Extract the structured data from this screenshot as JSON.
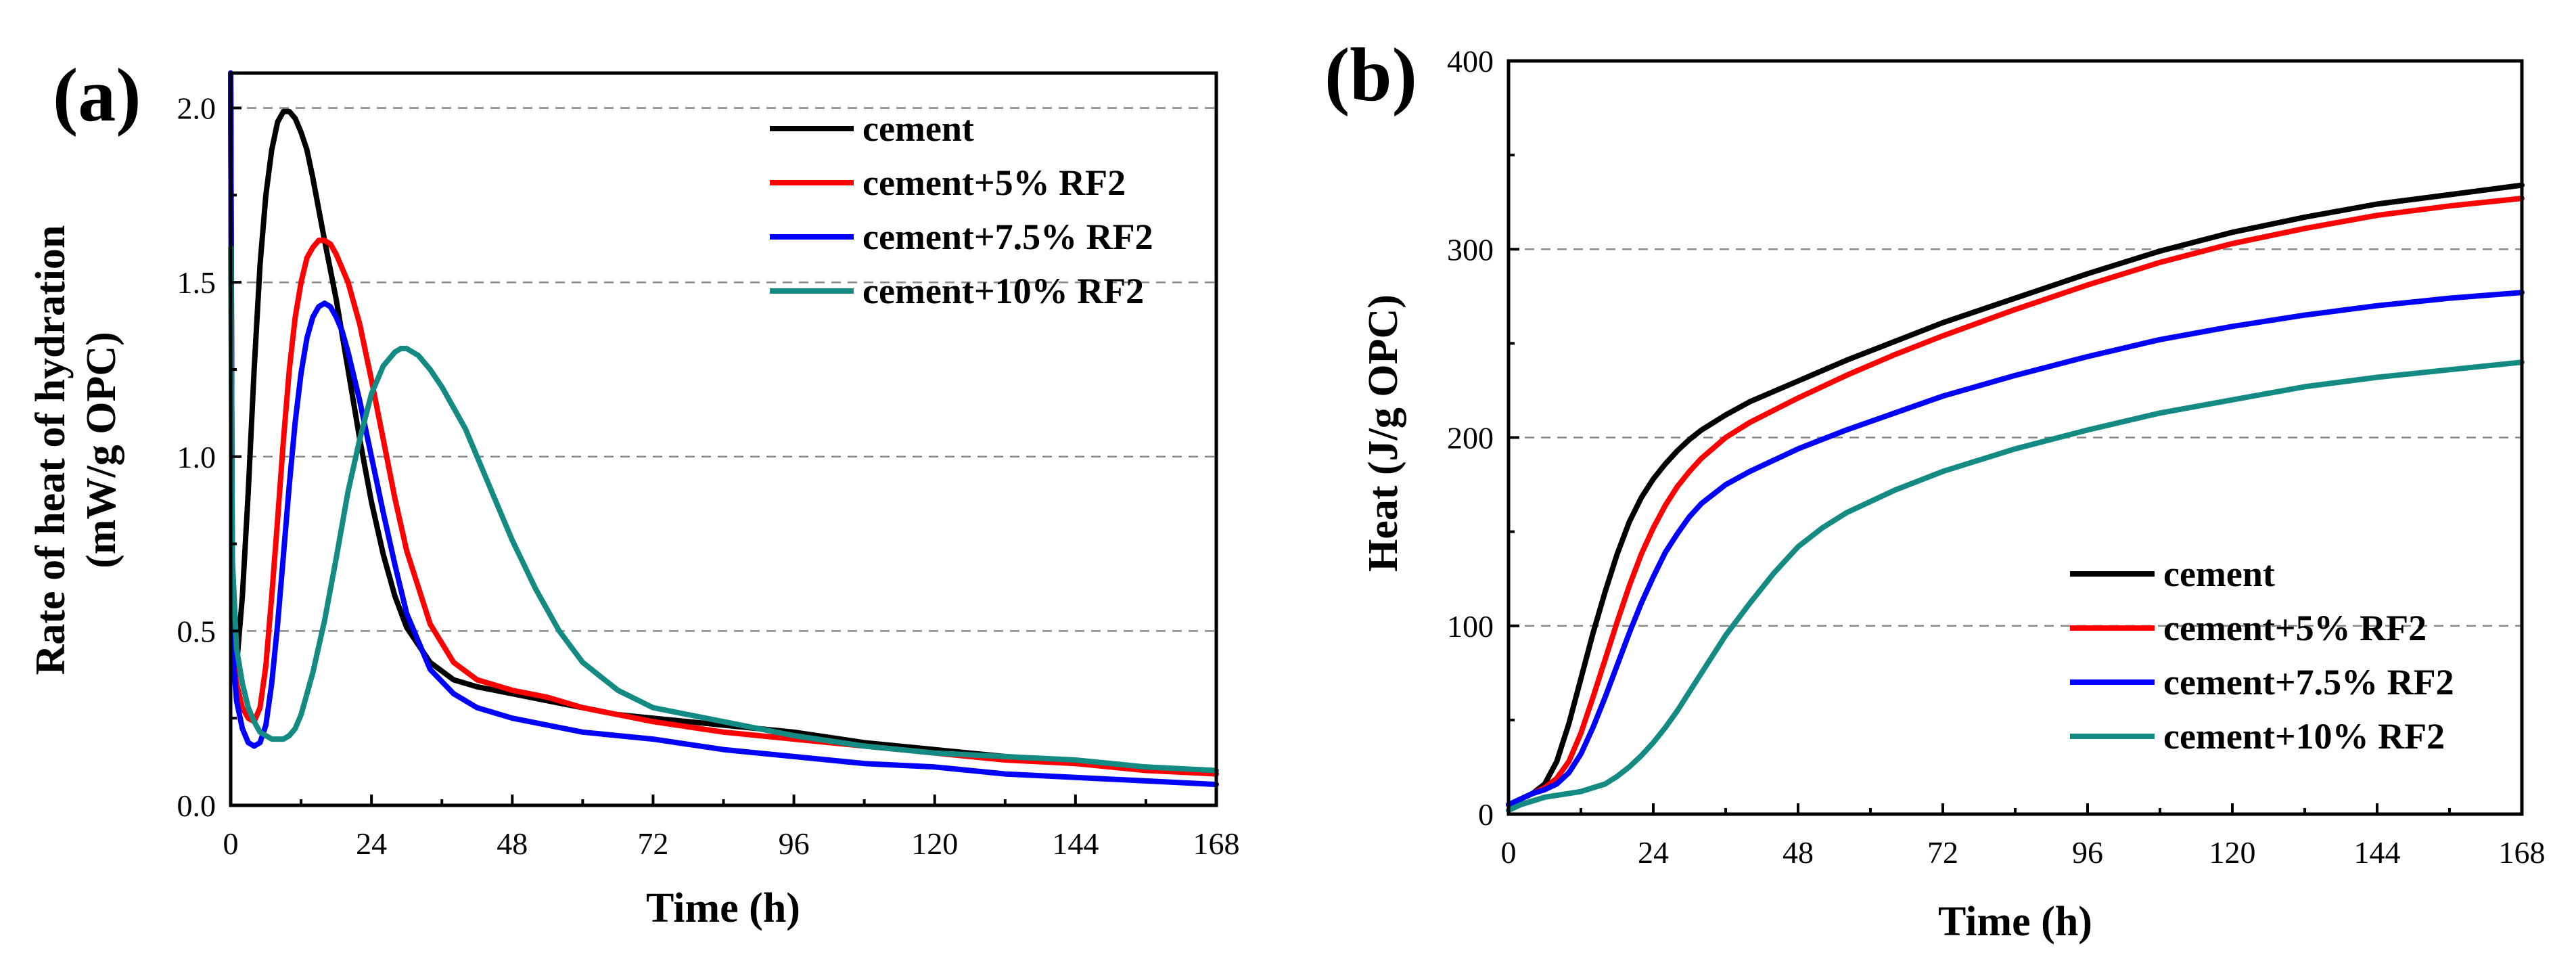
{
  "chart_data": [
    {
      "panel_label": "(a)",
      "type": "line",
      "xlabel": "Time (h)",
      "ylabel_line1": "Rate of heat of hydration",
      "ylabel_line2": "(mW/g OPC)",
      "xlim": [
        0,
        168
      ],
      "ylim": [
        0,
        2.1
      ],
      "xticks": [
        0,
        24,
        48,
        72,
        96,
        120,
        144,
        168
      ],
      "yticks": [
        0.0,
        0.5,
        1.0,
        1.5,
        2.0
      ],
      "ytick_labels": [
        "0.0",
        "0.5",
        "1.0",
        "1.5",
        "2.0"
      ],
      "gridlines_y": [
        0.5,
        1.0,
        1.5,
        2.0
      ],
      "legend_position": "top-right",
      "series": [
        {
          "name": "cement",
          "color": "#000000",
          "x": [
            0,
            0.3,
            1,
            2,
            3,
            4,
            5,
            6,
            7,
            8,
            9,
            10,
            11,
            12,
            13,
            14,
            16,
            18,
            20,
            22,
            24,
            26,
            28,
            30,
            34,
            38,
            42,
            48,
            54,
            60,
            66,
            72,
            78,
            84,
            90,
            96,
            108,
            120,
            132,
            144,
            156,
            168
          ],
          "y": [
            2.1,
            0.5,
            0.4,
            0.6,
            0.9,
            1.25,
            1.55,
            1.75,
            1.88,
            1.96,
            1.99,
            1.99,
            1.97,
            1.93,
            1.88,
            1.8,
            1.62,
            1.45,
            1.25,
            1.05,
            0.87,
            0.72,
            0.6,
            0.51,
            0.41,
            0.36,
            0.34,
            0.32,
            0.3,
            0.28,
            0.26,
            0.25,
            0.24,
            0.23,
            0.22,
            0.21,
            0.18,
            0.16,
            0.14,
            0.12,
            0.11,
            0.09
          ]
        },
        {
          "name": "cement+5% RF2",
          "color": "#ff0000",
          "x": [
            0,
            0.3,
            1,
            2,
            3,
            4,
            5,
            6,
            7,
            8,
            9,
            10,
            11,
            12,
            13,
            14,
            15,
            16,
            17,
            18,
            20,
            22,
            24,
            26,
            28,
            30,
            34,
            38,
            42,
            48,
            54,
            60,
            66,
            72,
            84,
            96,
            108,
            120,
            132,
            144,
            156,
            168
          ],
          "y": [
            2.1,
            0.45,
            0.35,
            0.28,
            0.25,
            0.24,
            0.28,
            0.4,
            0.6,
            0.82,
            1.05,
            1.25,
            1.4,
            1.5,
            1.57,
            1.6,
            1.62,
            1.62,
            1.61,
            1.58,
            1.5,
            1.38,
            1.22,
            1.05,
            0.88,
            0.73,
            0.52,
            0.41,
            0.36,
            0.33,
            0.31,
            0.28,
            0.26,
            0.24,
            0.21,
            0.19,
            0.17,
            0.15,
            0.13,
            0.12,
            0.1,
            0.09
          ]
        },
        {
          "name": "cement+7.5% RF2",
          "color": "#0000ff",
          "x": [
            0,
            0.3,
            1,
            2,
            3,
            4,
            5,
            6,
            7,
            8,
            9,
            10,
            11,
            12,
            13,
            14,
            15,
            16,
            17,
            18,
            19,
            20,
            22,
            24,
            26,
            28,
            30,
            34,
            38,
            42,
            48,
            54,
            60,
            66,
            72,
            84,
            96,
            108,
            120,
            132,
            144,
            156,
            168
          ],
          "y": [
            2.1,
            0.45,
            0.3,
            0.22,
            0.18,
            0.17,
            0.18,
            0.23,
            0.35,
            0.52,
            0.72,
            0.92,
            1.1,
            1.24,
            1.34,
            1.4,
            1.43,
            1.44,
            1.43,
            1.4,
            1.36,
            1.3,
            1.16,
            1.0,
            0.84,
            0.69,
            0.55,
            0.39,
            0.32,
            0.28,
            0.25,
            0.23,
            0.21,
            0.2,
            0.19,
            0.16,
            0.14,
            0.12,
            0.11,
            0.09,
            0.08,
            0.07,
            0.06
          ]
        },
        {
          "name": "cement+10% RF2",
          "color": "#138b82",
          "x": [
            0,
            0.3,
            1,
            2,
            3,
            4,
            5,
            6,
            7,
            8,
            9,
            10,
            11,
            12,
            14,
            16,
            18,
            20,
            22,
            24,
            26,
            28,
            29,
            30,
            32,
            34,
            36,
            38,
            40,
            42,
            44,
            46,
            48,
            52,
            56,
            60,
            66,
            72,
            84,
            96,
            108,
            120,
            132,
            144,
            156,
            168
          ],
          "y": [
            1.6,
            0.7,
            0.45,
            0.35,
            0.28,
            0.24,
            0.21,
            0.2,
            0.19,
            0.19,
            0.19,
            0.2,
            0.22,
            0.26,
            0.38,
            0.53,
            0.71,
            0.9,
            1.05,
            1.18,
            1.26,
            1.3,
            1.31,
            1.31,
            1.29,
            1.25,
            1.2,
            1.14,
            1.08,
            1.0,
            0.92,
            0.84,
            0.76,
            0.62,
            0.5,
            0.41,
            0.33,
            0.28,
            0.24,
            0.2,
            0.17,
            0.15,
            0.14,
            0.13,
            0.11,
            0.1
          ]
        }
      ]
    },
    {
      "panel_label": "(b)",
      "type": "line",
      "xlabel": "Time (h)",
      "ylabel": "Heat (J/g OPC)",
      "xlim": [
        0,
        168
      ],
      "ylim": [
        0,
        400
      ],
      "xticks": [
        0,
        24,
        48,
        72,
        96,
        120,
        144,
        168
      ],
      "yticks": [
        0,
        100,
        200,
        300,
        400
      ],
      "ytick_labels": [
        "0",
        "100",
        "200",
        "300",
        "400"
      ],
      "gridlines_y": [
        100,
        200,
        300
      ],
      "legend_position": "bottom-right",
      "series": [
        {
          "name": "cement",
          "color": "#000000",
          "x": [
            0,
            2,
            4,
            6,
            8,
            10,
            12,
            14,
            16,
            18,
            20,
            22,
            24,
            26,
            28,
            30,
            32,
            36,
            40,
            48,
            56,
            64,
            72,
            84,
            96,
            108,
            120,
            132,
            144,
            156,
            168
          ],
          "y": [
            5,
            8,
            11,
            16,
            28,
            48,
            72,
            96,
            118,
            138,
            155,
            168,
            178,
            186,
            193,
            199,
            204,
            212,
            219,
            230,
            241,
            251,
            261,
            274,
            287,
            299,
            309,
            317,
            324,
            329,
            334
          ]
        },
        {
          "name": "cement+5% RF2",
          "color": "#ff0000",
          "x": [
            0,
            2,
            4,
            6,
            8,
            10,
            12,
            14,
            16,
            18,
            20,
            22,
            24,
            26,
            28,
            30,
            32,
            36,
            40,
            48,
            56,
            64,
            72,
            84,
            96,
            108,
            120,
            132,
            144,
            156,
            168
          ],
          "y": [
            5,
            8,
            11,
            14,
            19,
            28,
            43,
            62,
            82,
            102,
            121,
            138,
            152,
            164,
            174,
            182,
            189,
            200,
            208,
            221,
            233,
            244,
            254,
            268,
            281,
            293,
            303,
            311,
            318,
            323,
            327
          ]
        },
        {
          "name": "cement+7.5% RF2",
          "color": "#0000ff",
          "x": [
            0,
            2,
            4,
            6,
            8,
            10,
            12,
            14,
            16,
            18,
            20,
            22,
            24,
            26,
            28,
            30,
            32,
            36,
            40,
            48,
            56,
            64,
            72,
            84,
            96,
            108,
            120,
            132,
            144,
            156,
            168
          ],
          "y": [
            5,
            8,
            11,
            13,
            16,
            22,
            32,
            46,
            62,
            79,
            96,
            112,
            126,
            139,
            149,
            158,
            165,
            175,
            182,
            194,
            204,
            213,
            222,
            233,
            243,
            252,
            259,
            265,
            270,
            274,
            277
          ]
        },
        {
          "name": "cement+10% RF2",
          "color": "#138b82",
          "x": [
            0,
            2,
            4,
            6,
            8,
            10,
            12,
            14,
            16,
            18,
            20,
            22,
            24,
            26,
            28,
            30,
            32,
            34,
            36,
            40,
            44,
            48,
            52,
            56,
            64,
            72,
            84,
            96,
            108,
            120,
            132,
            144,
            156,
            168
          ],
          "y": [
            2,
            5,
            7,
            9,
            10,
            11,
            12,
            14,
            16,
            20,
            25,
            31,
            38,
            46,
            55,
            65,
            75,
            85,
            95,
            112,
            128,
            142,
            152,
            160,
            172,
            182,
            194,
            204,
            213,
            220,
            227,
            232,
            236,
            240
          ]
        }
      ]
    }
  ]
}
